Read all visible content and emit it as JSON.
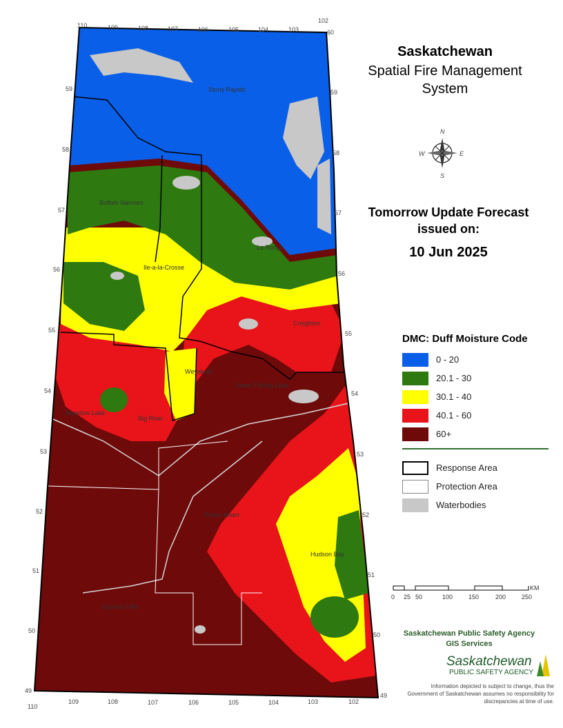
{
  "title": {
    "line1": "Saskatchewan",
    "line2": "Spatial Fire Management",
    "line3": "System"
  },
  "forecast": {
    "label_line1": "Tomorrow Update Forecast",
    "label_line2": "issued on:",
    "date": "10 Jun 2025"
  },
  "legend": {
    "title": "DMC: Duff Moisture Code",
    "classes": [
      {
        "label": "0 - 20",
        "color": "#0a5fe8"
      },
      {
        "label": "20.1 - 30",
        "color": "#2e7a10"
      },
      {
        "label": "30.1 - 40",
        "color": "#ffff00"
      },
      {
        "label": "40.1 - 60",
        "color": "#e8141a"
      },
      {
        "label": "60+",
        "color": "#6e0a0a"
      }
    ],
    "boundaries": [
      {
        "label": "Response Area",
        "style": "thick-black-outline"
      },
      {
        "label": "Protection Area",
        "style": "thin-gray-outline"
      },
      {
        "label": "Waterbodies",
        "color": "#c8c8c8"
      }
    ]
  },
  "scale_bar": {
    "unit": "KM",
    "ticks": [
      "0",
      "25",
      "50",
      "100",
      "150",
      "200",
      "250"
    ]
  },
  "longitudes_top": [
    "110",
    "109",
    "108",
    "107",
    "106",
    "105",
    "104",
    "103",
    "102"
  ],
  "longitudes_bottom": [
    "110",
    "109",
    "108",
    "107",
    "106",
    "105",
    "104",
    "103",
    "102"
  ],
  "latitude_corner_top": "60",
  "latitudes": [
    "59",
    "58",
    "57",
    "56",
    "55",
    "54",
    "53",
    "52",
    "51",
    "50",
    "49"
  ],
  "places": [
    "Stony Rapids",
    "Buffalo Narrows",
    "La Ronge",
    "Ile-a-la-Crosse",
    "Creighton",
    "Weyakwin",
    "Lower Fishing Lake",
    "Meadow Lake",
    "Big River",
    "Prince Albert",
    "Hudson Bay",
    "Cypress Hills",
    "Lloydminster"
  ],
  "compass": {
    "n": "N",
    "e": "E",
    "s": "S",
    "w": "W"
  },
  "organization": {
    "line1": "Saskatchewan Public Safety Agency",
    "line2": "GIS  Services",
    "logo_main": "Saskatchewan",
    "logo_sub": "PUBLIC SAFETY AGENCY"
  },
  "disclaimer": "Information depicted is subject to change, thus the Government of Saskatchewan assumes no responsibility for discrepancies at time of use."
}
